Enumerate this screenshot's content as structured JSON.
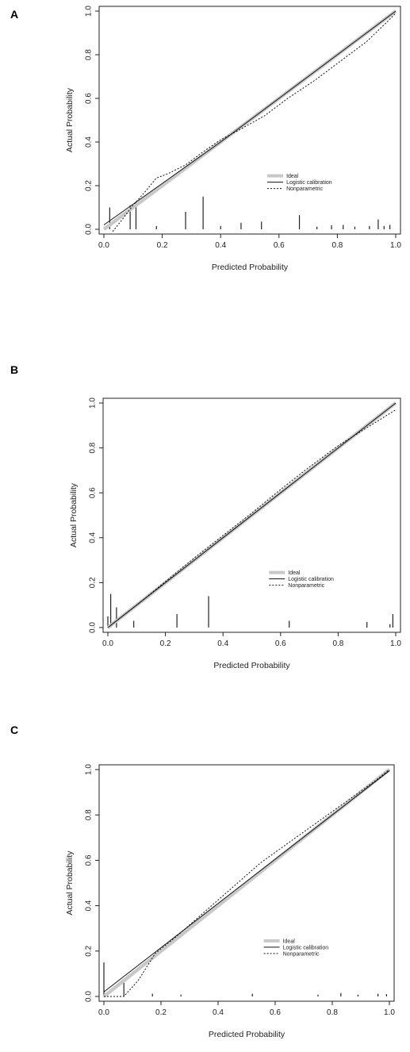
{
  "figure": {
    "panel_labels": [
      "A",
      "B",
      "C"
    ]
  },
  "chart_data": [
    {
      "panel": "A",
      "type": "line",
      "xlabel": "Predicted Probability",
      "ylabel": "Actual Probability",
      "xlim": [
        0,
        1
      ],
      "ylim": [
        0,
        1
      ],
      "xticks": [
        "0.0",
        "0.2",
        "0.4",
        "0.6",
        "0.8",
        "1.0"
      ],
      "yticks": [
        "0.0",
        "0.2",
        "0.4",
        "0.6",
        "0.8",
        "1.0"
      ],
      "legend": {
        "placement": "lower-right",
        "entries": [
          "Ideal",
          "Logistic calibration",
          "Nonparametric"
        ]
      },
      "series": [
        {
          "name": "Ideal",
          "style": "thick light grey",
          "color": "#c8c8c8",
          "x": [
            0,
            1
          ],
          "y": [
            0,
            1
          ]
        },
        {
          "name": "Logistic calibration",
          "style": "solid",
          "color": "#111111",
          "x": [
            0,
            0.1,
            0.2,
            0.3,
            0.4,
            0.5,
            0.6,
            0.7,
            0.8,
            0.9,
            1.0
          ],
          "y": [
            0.02,
            0.115,
            0.21,
            0.305,
            0.4,
            0.5,
            0.6,
            0.7,
            0.8,
            0.9,
            1.0
          ]
        },
        {
          "name": "Nonparametric",
          "style": "dotted",
          "color": "#111111",
          "x": [
            0.03,
            0.06,
            0.1,
            0.14,
            0.18,
            0.22,
            0.28,
            0.34,
            0.4,
            0.47,
            0.55,
            0.63,
            0.72,
            0.81,
            0.9,
            0.97,
            1.0
          ],
          "y": [
            -0.01,
            0.04,
            0.11,
            0.17,
            0.235,
            0.255,
            0.295,
            0.355,
            0.41,
            0.46,
            0.52,
            0.6,
            0.68,
            0.77,
            0.86,
            0.95,
            0.99
          ]
        }
      ],
      "rug": [
        {
          "x": 0.02,
          "h": 0.1
        },
        {
          "x": 0.09,
          "h": 0.11
        },
        {
          "x": 0.11,
          "h": 0.125
        },
        {
          "x": 0.18,
          "h": 0.015
        },
        {
          "x": 0.28,
          "h": 0.08
        },
        {
          "x": 0.34,
          "h": 0.15
        },
        {
          "x": 0.4,
          "h": 0.015
        },
        {
          "x": 0.47,
          "h": 0.03
        },
        {
          "x": 0.54,
          "h": 0.035
        },
        {
          "x": 0.67,
          "h": 0.065
        },
        {
          "x": 0.73,
          "h": 0.012
        },
        {
          "x": 0.78,
          "h": 0.018
        },
        {
          "x": 0.82,
          "h": 0.02
        },
        {
          "x": 0.86,
          "h": 0.012
        },
        {
          "x": 0.91,
          "h": 0.015
        },
        {
          "x": 0.94,
          "h": 0.045
        },
        {
          "x": 0.96,
          "h": 0.015
        },
        {
          "x": 0.98,
          "h": 0.02
        }
      ]
    },
    {
      "panel": "B",
      "type": "line",
      "xlabel": "Predicted Probability",
      "ylabel": "Actual Probability",
      "xlim": [
        0,
        1
      ],
      "ylim": [
        0,
        1
      ],
      "xticks": [
        "0.0",
        "0.2",
        "0.4",
        "0.6",
        "0.8",
        "1.0"
      ],
      "yticks": [
        "0.0",
        "0.2",
        "0.4",
        "0.6",
        "0.8",
        "1.0"
      ],
      "legend": {
        "placement": "lower-right",
        "entries": [
          "Ideal",
          "Logistic calibration",
          "Nonparametric"
        ]
      },
      "series": [
        {
          "name": "Ideal",
          "style": "thick light grey",
          "color": "#c8c8c8",
          "x": [
            0,
            1
          ],
          "y": [
            0,
            1
          ]
        },
        {
          "name": "Logistic calibration",
          "style": "solid",
          "color": "#111111",
          "x": [
            0,
            0.2,
            0.4,
            0.6,
            0.8,
            1.0
          ],
          "y": [
            0.0,
            0.2,
            0.4,
            0.6,
            0.8,
            1.0
          ]
        },
        {
          "name": "Nonparametric",
          "style": "dotted",
          "color": "#111111",
          "x": [
            0.01,
            0.05,
            0.1,
            0.2,
            0.3,
            0.4,
            0.5,
            0.6,
            0.7,
            0.8,
            0.9,
            0.95,
            1.0
          ],
          "y": [
            0.01,
            0.05,
            0.1,
            0.205,
            0.31,
            0.41,
            0.51,
            0.615,
            0.715,
            0.81,
            0.89,
            0.93,
            0.97
          ]
        }
      ],
      "rug": [
        {
          "x": 0.0,
          "h": 0.05
        },
        {
          "x": 0.01,
          "h": 0.15
        },
        {
          "x": 0.03,
          "h": 0.09
        },
        {
          "x": 0.09,
          "h": 0.03
        },
        {
          "x": 0.24,
          "h": 0.06
        },
        {
          "x": 0.35,
          "h": 0.14
        },
        {
          "x": 0.63,
          "h": 0.03
        },
        {
          "x": 0.9,
          "h": 0.025
        },
        {
          "x": 0.98,
          "h": 0.015
        },
        {
          "x": 0.99,
          "h": 0.06
        }
      ]
    },
    {
      "panel": "C",
      "type": "line",
      "xlabel": "Predicted Probability",
      "ylabel": "Actual Probability",
      "xlim": [
        0,
        1
      ],
      "ylim": [
        0,
        1
      ],
      "xticks": [
        "0.0",
        "0.2",
        "0.4",
        "0.6",
        "0.8",
        "1.0"
      ],
      "yticks": [
        "0.0",
        "0.2",
        "0.4",
        "0.6",
        "0.8",
        "1.0"
      ],
      "legend": {
        "placement": "lower-right",
        "entries": [
          "Ideal",
          "Logistic calibration",
          "Nonparametric"
        ]
      },
      "series": [
        {
          "name": "Ideal",
          "style": "thick light grey",
          "color": "#c8c8c8",
          "x": [
            0,
            1
          ],
          "y": [
            0,
            1
          ]
        },
        {
          "name": "Logistic calibration",
          "style": "solid",
          "color": "#111111",
          "x": [
            0,
            0.2,
            0.4,
            0.6,
            0.8,
            1.0
          ],
          "y": [
            0.02,
            0.215,
            0.41,
            0.605,
            0.8,
            0.995
          ]
        },
        {
          "name": "Nonparametric",
          "style": "dotted",
          "color": "#111111",
          "x": [
            0.0,
            0.03,
            0.07,
            0.12,
            0.18,
            0.25,
            0.35,
            0.45,
            0.55,
            0.65,
            0.75,
            0.85,
            0.95,
            1.0
          ],
          "y": [
            0.0,
            0.0,
            0.0,
            0.07,
            0.19,
            0.26,
            0.37,
            0.48,
            0.59,
            0.68,
            0.77,
            0.86,
            0.95,
            1.0
          ]
        }
      ],
      "rug": [
        {
          "x": 0.0,
          "h": 0.15
        },
        {
          "x": 0.07,
          "h": 0.06
        },
        {
          "x": 0.17,
          "h": 0.012
        },
        {
          "x": 0.27,
          "h": 0.008
        },
        {
          "x": 0.52,
          "h": 0.012
        },
        {
          "x": 0.75,
          "h": 0.008
        },
        {
          "x": 0.83,
          "h": 0.015
        },
        {
          "x": 0.89,
          "h": 0.008
        },
        {
          "x": 0.96,
          "h": 0.012
        },
        {
          "x": 0.99,
          "h": 0.01
        }
      ]
    }
  ]
}
